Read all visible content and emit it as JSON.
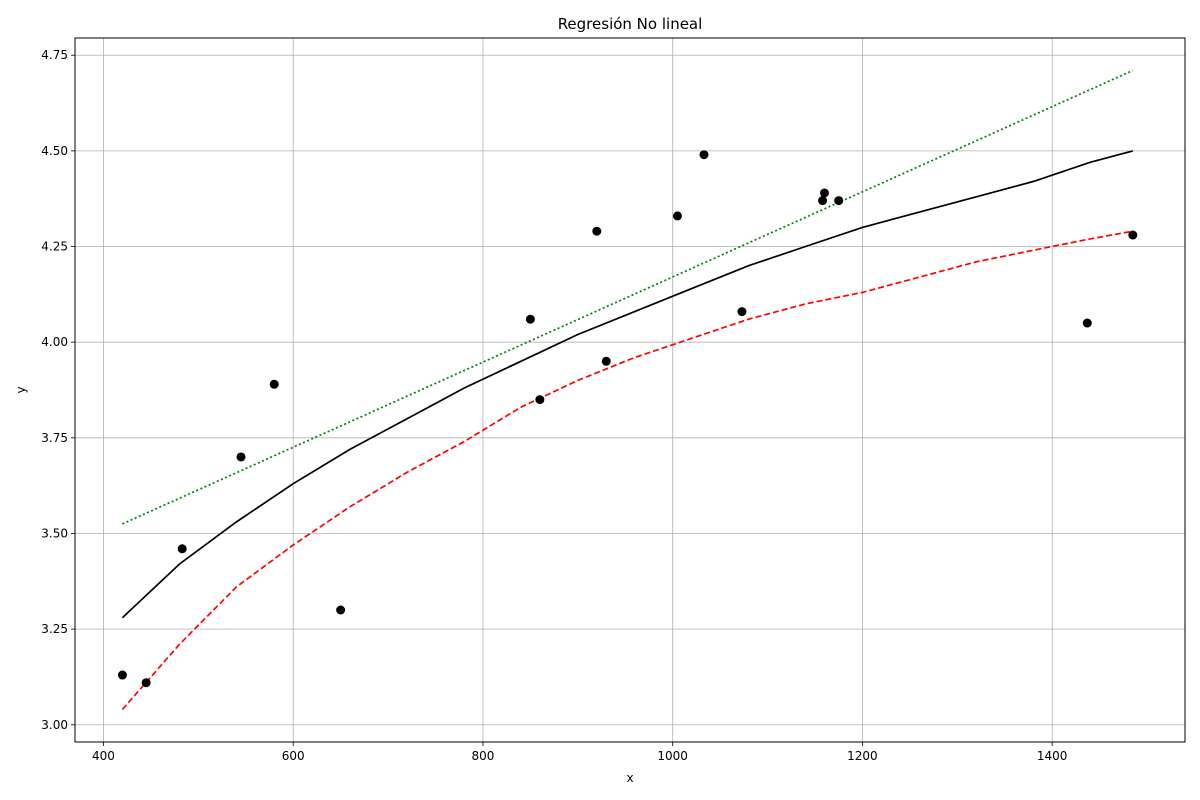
{
  "chart_data": {
    "type": "scatter",
    "title": "Regresión No lineal",
    "xlabel": "x",
    "ylabel": "y",
    "xlim": [
      370,
      1540
    ],
    "ylim": [
      2.955,
      4.795
    ],
    "xticks": [
      400,
      600,
      800,
      1000,
      1200,
      1400
    ],
    "xtick_labels": [
      "400",
      "600",
      "800",
      "1000",
      "1200",
      "1400"
    ],
    "yticks": [
      3.0,
      3.25,
      3.5,
      3.75,
      4.0,
      4.25,
      4.5,
      4.75
    ],
    "ytick_labels": [
      "3.00",
      "3.25",
      "3.50",
      "3.75",
      "4.00",
      "4.25",
      "4.50",
      "4.75"
    ],
    "grid": true,
    "points": {
      "color": "#000000",
      "x": [
        420,
        445,
        483,
        545,
        580,
        650,
        850,
        860,
        920,
        930,
        1005,
        1033,
        1073,
        1158,
        1160,
        1175,
        1437,
        1485
      ],
      "y": [
        3.13,
        3.11,
        3.46,
        3.7,
        3.89,
        3.3,
        4.06,
        3.85,
        4.29,
        3.95,
        4.33,
        4.49,
        4.08,
        4.37,
        4.39,
        4.37,
        4.05,
        4.28
      ]
    },
    "curves": [
      {
        "style": "solid",
        "color": "#000000",
        "x": [
          420,
          480,
          540,
          600,
          660,
          720,
          780,
          840,
          900,
          960,
          1020,
          1080,
          1140,
          1200,
          1260,
          1320,
          1380,
          1440,
          1485
        ],
        "y": [
          3.28,
          3.42,
          3.53,
          3.63,
          3.72,
          3.8,
          3.88,
          3.95,
          4.02,
          4.08,
          4.14,
          4.2,
          4.25,
          4.3,
          4.34,
          4.38,
          4.42,
          4.47,
          4.5
        ]
      },
      {
        "style": "dashed",
        "color": "#ff0000",
        "x": [
          420,
          480,
          540,
          600,
          660,
          720,
          780,
          840,
          900,
          960,
          1020,
          1080,
          1140,
          1200,
          1260,
          1320,
          1380,
          1440,
          1485
        ],
        "y": [
          3.04,
          3.21,
          3.36,
          3.47,
          3.57,
          3.66,
          3.74,
          3.83,
          3.9,
          3.96,
          4.01,
          4.06,
          4.1,
          4.13,
          4.17,
          4.21,
          4.24,
          4.27,
          4.29
        ]
      },
      {
        "style": "dotted",
        "color": "#008000",
        "x": [
          420,
          1485
        ],
        "y": [
          3.525,
          4.71
        ]
      }
    ]
  }
}
